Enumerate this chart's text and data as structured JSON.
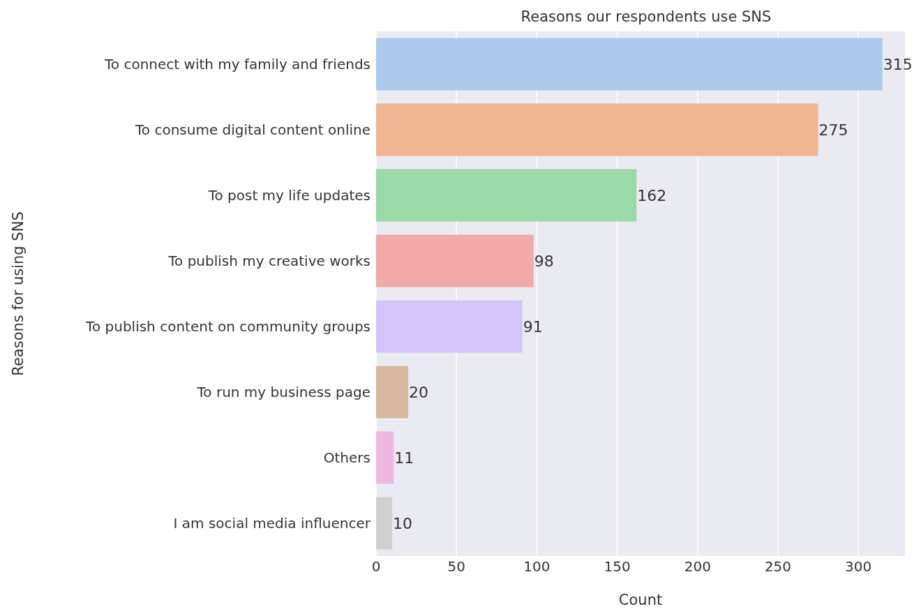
{
  "chart_data": {
    "type": "bar",
    "orientation": "horizontal",
    "title": "Reasons our respondents use SNS",
    "xlabel": "Count",
    "ylabel": "Reasons for using SNS",
    "categories": [
      "To connect with my family and friends",
      "To consume digital content online",
      "To post my life updates",
      "To publish my creative works",
      "To publish content on community groups",
      "To run my business page",
      "Others",
      "I am social media influencer"
    ],
    "values": [
      315,
      275,
      162,
      98,
      91,
      20,
      11,
      10
    ],
    "colors": [
      "#abc9eb",
      "#f0b691",
      "#9bdaa8",
      "#f1aaa7",
      "#d3c4f7",
      "#d6b99e",
      "#f0b8e0",
      "#d0d0d0"
    ],
    "xlim": [
      0,
      329
    ],
    "xticks": [
      0,
      50,
      100,
      150,
      200,
      250,
      300
    ],
    "grid": "x",
    "data_labels": true,
    "legend": false
  }
}
